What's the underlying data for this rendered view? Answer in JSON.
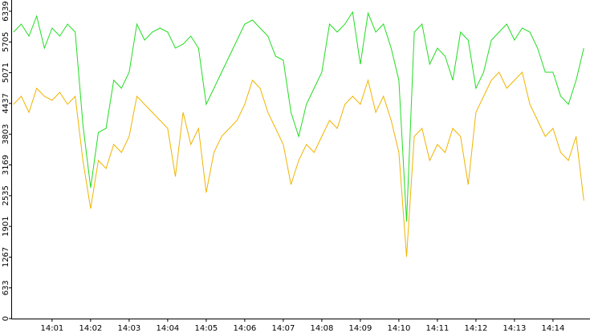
{
  "chart_data": {
    "type": "line",
    "x": [
      0,
      0.2,
      0.4,
      0.6,
      0.8,
      1,
      1.2,
      1.4,
      1.6,
      1.8,
      2,
      2.2,
      2.4,
      2.6,
      2.8,
      3,
      3.2,
      3.4,
      3.6,
      3.8,
      4,
      4.2,
      4.4,
      4.6,
      4.8,
      5,
      5.2,
      5.4,
      5.6,
      5.8,
      6,
      6.2,
      6.4,
      6.6,
      6.8,
      7,
      7.2,
      7.4,
      7.6,
      7.8,
      8,
      8.2,
      8.4,
      8.6,
      8.8,
      9,
      9.2,
      9.4,
      9.6,
      9.8,
      10,
      10.2,
      10.4,
      10.6,
      10.8,
      11,
      11.2,
      11.4,
      11.6,
      11.8,
      12,
      12.2,
      12.4,
      12.6,
      12.8,
      13,
      13.2,
      13.4,
      13.6,
      13.8,
      14,
      14.2,
      14.4,
      14.6,
      14.8
    ],
    "series": [
      {
        "color": "#22dd22",
        "values": [
          5908,
          6074,
          5826,
          6240,
          5577,
          5991,
          5826,
          6074,
          5908,
          4000,
          2700,
          3840,
          3922,
          4915,
          4750,
          5081,
          6074,
          5743,
          5908,
          5991,
          5908,
          5577,
          5660,
          5826,
          5577,
          4419,
          4750,
          5081,
          5412,
          5743,
          6074,
          6157,
          5991,
          5826,
          5412,
          5329,
          4253,
          3757,
          4419,
          4750,
          5081,
          6074,
          5908,
          6074,
          6322,
          5246,
          6300,
          5908,
          6074,
          5577,
          4915,
          2000,
          5908,
          6074,
          5246,
          5577,
          5412,
          4915,
          5908,
          5743,
          4750,
          5081,
          5743,
          5908,
          6074,
          5743,
          5991,
          5908,
          5577,
          5081,
          5081,
          4584,
          4419,
          4915,
          5577
        ]
      },
      {
        "color": "#f0b400",
        "values": [
          4419,
          4584,
          4253,
          4750,
          4584,
          4502,
          4667,
          4419,
          4584,
          3260,
          2267,
          3260,
          3095,
          3591,
          3426,
          3757,
          4584,
          4419,
          4253,
          4088,
          3922,
          2929,
          4253,
          3591,
          3922,
          2598,
          3426,
          3757,
          3922,
          4088,
          4419,
          4915,
          4750,
          4253,
          3922,
          3591,
          2764,
          3260,
          3591,
          3426,
          3757,
          4088,
          3922,
          4419,
          4584,
          4419,
          4915,
          4253,
          4584,
          4088,
          3426,
          1274,
          3757,
          3922,
          3260,
          3591,
          3426,
          3922,
          3757,
          2764,
          4253,
          4584,
          4915,
          5081,
          4750,
          4915,
          5081,
          4419,
          4088,
          3757,
          3922,
          3426,
          3260,
          3757,
          2433
        ]
      }
    ],
    "xlim": [
      -0.06,
      14.96
    ],
    "xticks": [
      {
        "value": 1,
        "label": "14:01"
      },
      {
        "value": 2,
        "label": "14:02"
      },
      {
        "value": 3,
        "label": "14:03"
      },
      {
        "value": 4,
        "label": "14:04"
      },
      {
        "value": 5,
        "label": "14:05"
      },
      {
        "value": 6,
        "label": "14:06"
      },
      {
        "value": 7,
        "label": "14:07"
      },
      {
        "value": 8,
        "label": "14:08"
      },
      {
        "value": 9,
        "label": "14:09"
      },
      {
        "value": 10,
        "label": "14:10"
      },
      {
        "value": 11,
        "label": "14:11"
      },
      {
        "value": 12,
        "label": "14:12"
      },
      {
        "value": 13,
        "label": "14:13"
      },
      {
        "value": 14,
        "label": "14:14"
      }
    ],
    "ylim": [
      0,
      6339
    ],
    "yticks": [
      0,
      633,
      1267,
      1901,
      2535,
      3169,
      3803,
      4437,
      5071,
      5705,
      6339
    ]
  }
}
